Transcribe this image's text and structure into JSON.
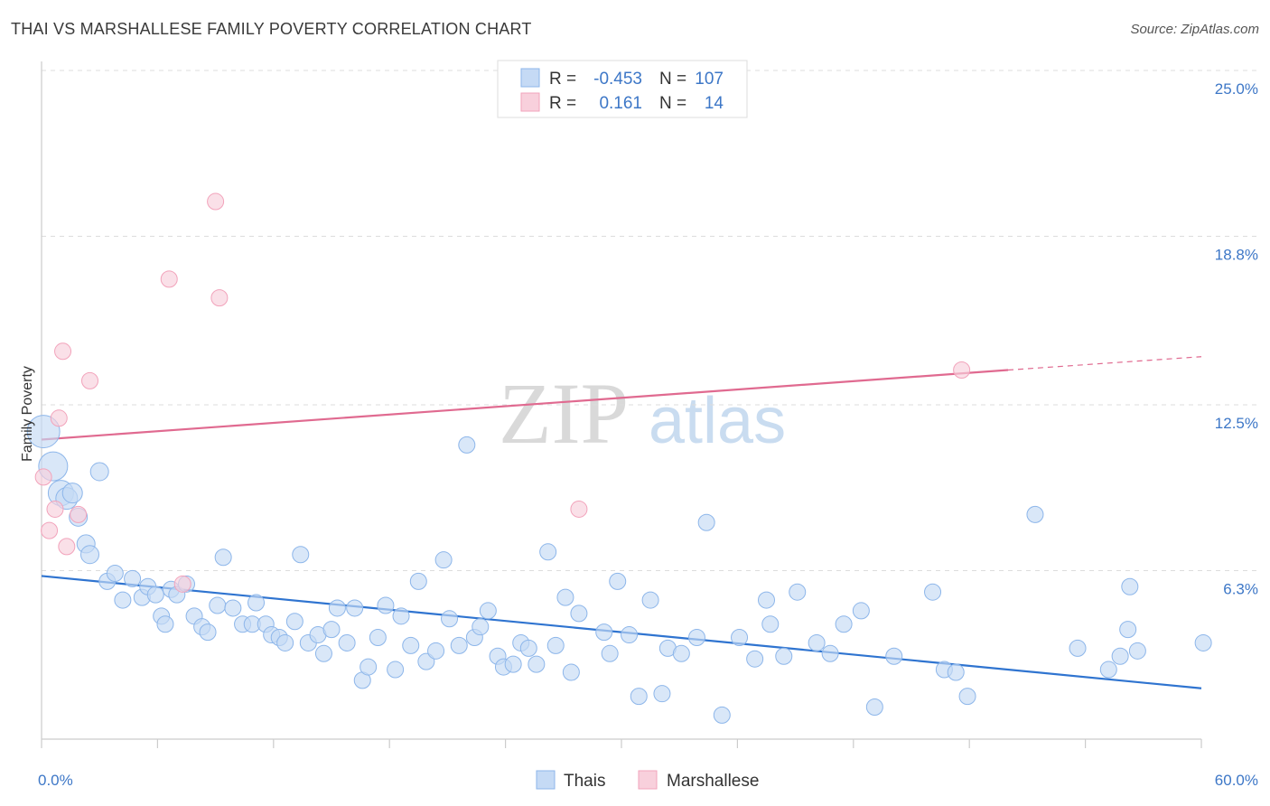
{
  "title": "THAI VS MARSHALLESE FAMILY POVERTY CORRELATION CHART",
  "source": "Source: ZipAtlas.com",
  "watermark": {
    "zip": "ZIP",
    "atlas": "atlas"
  },
  "colors": {
    "thais": "#8db6ea",
    "thais_fill": "#c5daf5",
    "thais_line": "#2f74d0",
    "marshallese": "#f2a3bb",
    "marshallese_fill": "#f8d0dc",
    "marshallese_line": "#e06a90",
    "tick_text": "#3d77c7",
    "grid": "#dddddd"
  },
  "legend": {
    "r_label": "R =",
    "n_label": "N =",
    "rows": [
      {
        "series": "thais",
        "r": "-0.453",
        "n": "107"
      },
      {
        "series": "marshallese",
        "r": "0.161",
        "n": "14"
      }
    ]
  },
  "chart_data": {
    "type": "scatter",
    "xlabel": "",
    "ylabel": "Family Poverty",
    "xlim": [
      0,
      60
    ],
    "ylim": [
      0,
      25
    ],
    "x_tick_labels": [
      "0.0%",
      "60.0%"
    ],
    "y_ticks": [
      {
        "value": 6.3,
        "label": "6.3%"
      },
      {
        "value": 12.5,
        "label": "12.5%"
      },
      {
        "value": 18.8,
        "label": "18.8%"
      },
      {
        "value": 25.0,
        "label": "25.0%"
      }
    ],
    "legend_position": "top-center",
    "grid": true,
    "series": [
      {
        "name": "Thais",
        "key": "thais",
        "trend": {
          "x": [
            0,
            60
          ],
          "y": [
            6.1,
            1.9
          ]
        },
        "points": [
          [
            0.1,
            11.5,
            18
          ],
          [
            0.6,
            10.2,
            16
          ],
          [
            1.0,
            9.2,
            14
          ],
          [
            1.3,
            9.0,
            12
          ],
          [
            1.6,
            9.2,
            11
          ],
          [
            1.9,
            8.3,
            10
          ],
          [
            2.3,
            7.3,
            10
          ],
          [
            2.5,
            6.9,
            10
          ],
          [
            3.0,
            10.0,
            10
          ],
          [
            3.4,
            5.9,
            9
          ],
          [
            3.8,
            6.2,
            9
          ],
          [
            4.2,
            5.2,
            9
          ],
          [
            4.7,
            6.0,
            9
          ],
          [
            5.2,
            5.3,
            9
          ],
          [
            5.5,
            5.7,
            9
          ],
          [
            5.9,
            5.4,
            9
          ],
          [
            6.2,
            4.6,
            9
          ],
          [
            6.4,
            4.3,
            9
          ],
          [
            6.7,
            5.6,
            9
          ],
          [
            7.0,
            5.4,
            9
          ],
          [
            7.5,
            5.8,
            9
          ],
          [
            7.9,
            4.6,
            9
          ],
          [
            8.3,
            4.2,
            9
          ],
          [
            8.6,
            4.0,
            9
          ],
          [
            9.1,
            5.0,
            9
          ],
          [
            9.4,
            6.8,
            9
          ],
          [
            9.9,
            4.9,
            9
          ],
          [
            10.4,
            4.3,
            9
          ],
          [
            10.9,
            4.3,
            9
          ],
          [
            11.1,
            5.1,
            9
          ],
          [
            11.6,
            4.3,
            9
          ],
          [
            11.9,
            3.9,
            9
          ],
          [
            12.3,
            3.8,
            9
          ],
          [
            12.6,
            3.6,
            9
          ],
          [
            13.1,
            4.4,
            9
          ],
          [
            13.4,
            6.9,
            9
          ],
          [
            13.8,
            3.6,
            9
          ],
          [
            14.3,
            3.9,
            9
          ],
          [
            14.6,
            3.2,
            9
          ],
          [
            15.0,
            4.1,
            9
          ],
          [
            15.3,
            4.9,
            9
          ],
          [
            15.8,
            3.6,
            9
          ],
          [
            16.2,
            4.9,
            9
          ],
          [
            16.6,
            2.2,
            9
          ],
          [
            16.9,
            2.7,
            9
          ],
          [
            17.4,
            3.8,
            9
          ],
          [
            17.8,
            5.0,
            9
          ],
          [
            18.3,
            2.6,
            9
          ],
          [
            18.6,
            4.6,
            9
          ],
          [
            19.1,
            3.5,
            9
          ],
          [
            19.5,
            5.9,
            9
          ],
          [
            19.9,
            2.9,
            9
          ],
          [
            20.4,
            3.3,
            9
          ],
          [
            20.8,
            6.7,
            9
          ],
          [
            21.1,
            4.5,
            9
          ],
          [
            21.6,
            3.5,
            9
          ],
          [
            22.0,
            11.0,
            9
          ],
          [
            22.4,
            3.8,
            9
          ],
          [
            22.7,
            4.2,
            9
          ],
          [
            23.1,
            4.8,
            9
          ],
          [
            23.6,
            3.1,
            9
          ],
          [
            23.9,
            2.7,
            9
          ],
          [
            24.4,
            2.8,
            9
          ],
          [
            24.8,
            3.6,
            9
          ],
          [
            25.2,
            3.4,
            9
          ],
          [
            25.6,
            2.8,
            9
          ],
          [
            26.2,
            7.0,
            9
          ],
          [
            26.6,
            3.5,
            9
          ],
          [
            27.1,
            5.3,
            9
          ],
          [
            27.4,
            2.5,
            9
          ],
          [
            27.8,
            4.7,
            9
          ],
          [
            29.1,
            4.0,
            9
          ],
          [
            29.4,
            3.2,
            9
          ],
          [
            29.8,
            5.9,
            9
          ],
          [
            30.4,
            3.9,
            9
          ],
          [
            30.9,
            1.6,
            9
          ],
          [
            31.5,
            5.2,
            9
          ],
          [
            32.1,
            1.7,
            9
          ],
          [
            32.4,
            3.4,
            9
          ],
          [
            33.1,
            3.2,
            9
          ],
          [
            33.9,
            3.8,
            9
          ],
          [
            34.4,
            8.1,
            9
          ],
          [
            35.2,
            0.9,
            9
          ],
          [
            36.1,
            3.8,
            9
          ],
          [
            36.9,
            3.0,
            9
          ],
          [
            37.5,
            5.2,
            9
          ],
          [
            38.4,
            3.1,
            9
          ],
          [
            39.1,
            5.5,
            9
          ],
          [
            40.1,
            3.6,
            9
          ],
          [
            40.8,
            3.2,
            9
          ],
          [
            41.5,
            4.3,
            9
          ],
          [
            42.4,
            4.8,
            9
          ],
          [
            43.1,
            1.2,
            9
          ],
          [
            44.1,
            3.1,
            9
          ],
          [
            46.1,
            5.5,
            9
          ],
          [
            46.7,
            2.6,
            9
          ],
          [
            47.3,
            2.5,
            9
          ],
          [
            56.2,
            4.1,
            9
          ],
          [
            60.1,
            3.6,
            9
          ],
          [
            51.4,
            8.4,
            9
          ],
          [
            53.6,
            3.4,
            9
          ],
          [
            55.2,
            2.6,
            9
          ],
          [
            55.8,
            3.1,
            9
          ],
          [
            56.3,
            5.7,
            9
          ],
          [
            56.7,
            3.3,
            9
          ],
          [
            37.7,
            4.3,
            9
          ],
          [
            47.9,
            1.6,
            9
          ]
        ]
      },
      {
        "name": "Marshallese",
        "key": "marshallese",
        "trend": {
          "x": [
            0,
            50
          ],
          "y": [
            11.2,
            13.8
          ]
        },
        "trend_dashed": {
          "x": [
            50,
            60
          ],
          "y": [
            13.8,
            14.3
          ]
        },
        "points": [
          [
            0.1,
            9.8,
            9
          ],
          [
            0.4,
            7.8,
            9
          ],
          [
            0.7,
            8.6,
            9
          ],
          [
            0.9,
            12.0,
            9
          ],
          [
            1.1,
            14.5,
            9
          ],
          [
            1.3,
            7.2,
            9
          ],
          [
            1.9,
            8.4,
            9
          ],
          [
            2.5,
            13.4,
            9
          ],
          [
            6.6,
            17.2,
            9
          ],
          [
            7.3,
            5.8,
            9
          ],
          [
            9.0,
            20.1,
            9
          ],
          [
            9.2,
            16.5,
            9
          ],
          [
            27.8,
            8.6,
            9
          ],
          [
            47.6,
            13.8,
            9
          ]
        ]
      }
    ]
  },
  "bottom_legend": [
    "Thais",
    "Marshallese"
  ]
}
